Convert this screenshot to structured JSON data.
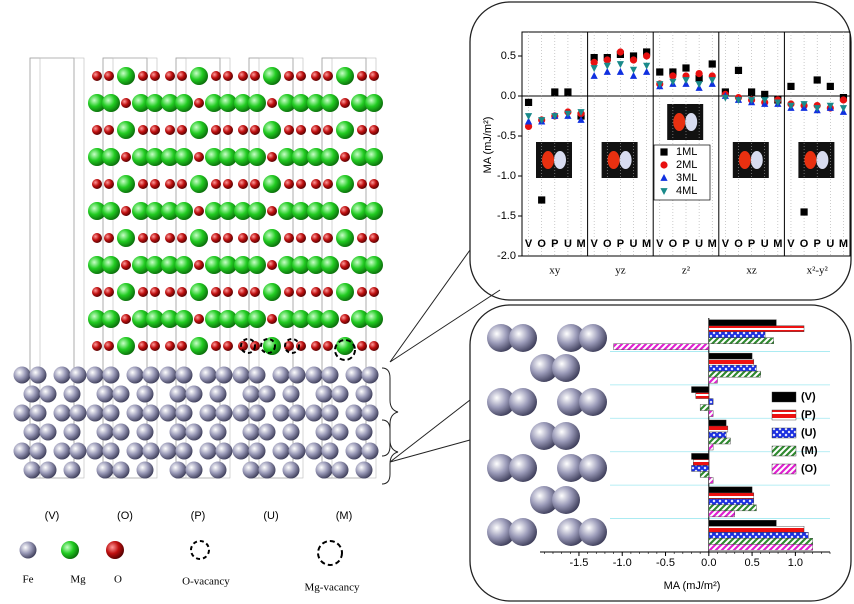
{
  "diagram": {
    "columns": [
      "(V)",
      "(O)",
      "(P)",
      "(U)",
      "(M)"
    ],
    "legend": [
      "Fe",
      "Mg",
      "O",
      "O-vacancy",
      "Mg-vacancy"
    ]
  },
  "chart_data": [
    {
      "type": "scatter",
      "ylabel": "MA (mJ/m²)",
      "groups": [
        "xy",
        "yz",
        "z²",
        "xz",
        "x²-y²"
      ],
      "categories": [
        "V",
        "O",
        "P",
        "U",
        "M"
      ],
      "series": [
        {
          "name": "1ML",
          "color": "#000000",
          "marker": "square",
          "values": [
            [
              -0.08,
              -1.3,
              0.05,
              0.05,
              -0.25
            ],
            [
              0.48,
              0.48,
              0.52,
              0.5,
              0.55
            ],
            [
              0.3,
              0.3,
              0.35,
              0.22,
              0.4
            ],
            [
              0.05,
              0.32,
              0.05,
              0.02,
              -0.05
            ],
            [
              0.12,
              -1.45,
              0.2,
              0.12,
              -0.02
            ]
          ]
        },
        {
          "name": "2ML",
          "color": "#e81010",
          "marker": "circle",
          "values": [
            [
              -0.38,
              -0.3,
              -0.25,
              -0.2,
              -0.22
            ],
            [
              0.42,
              0.45,
              0.55,
              0.45,
              0.5
            ],
            [
              0.15,
              0.25,
              0.25,
              0.28,
              0.25
            ],
            [
              0.02,
              -0.02,
              -0.05,
              -0.08,
              -0.05
            ],
            [
              -0.1,
              -0.12,
              -0.12,
              -0.15,
              -0.05
            ]
          ]
        },
        {
          "name": "3ML",
          "color": "#1030e0",
          "marker": "triangle",
          "values": [
            [
              -0.32,
              -0.32,
              -0.25,
              -0.25,
              -0.3
            ],
            [
              0.25,
              0.3,
              0.3,
              0.25,
              0.3
            ],
            [
              0.12,
              0.15,
              0.15,
              0.1,
              0.15
            ],
            [
              0.0,
              -0.05,
              -0.08,
              -0.1,
              -0.1
            ],
            [
              -0.15,
              -0.15,
              -0.18,
              -0.15,
              -0.2
            ]
          ]
        },
        {
          "name": "4ML",
          "color": "#1a8a8a",
          "marker": "triangle-down",
          "values": [
            [
              -0.25,
              -0.3,
              -0.25,
              -0.22,
              -0.2
            ],
            [
              0.35,
              0.38,
              0.4,
              0.33,
              0.38
            ],
            [
              0.15,
              0.18,
              0.2,
              0.15,
              0.2
            ],
            [
              -0.02,
              -0.05,
              -0.05,
              -0.05,
              -0.08
            ],
            [
              -0.12,
              -0.1,
              -0.15,
              -0.12,
              -0.15
            ]
          ]
        }
      ],
      "ylim": [
        -2,
        0.8
      ],
      "yticks": [
        {
          "value": -2,
          "label": "-2.0"
        },
        -1.5,
        {
          "value": -1,
          "label": "-1.0"
        },
        -0.5,
        {
          "value": 0,
          "label": "0.0"
        },
        0.5
      ]
    },
    {
      "type": "bar",
      "orientation": "horizontal",
      "xlabel": "MA (mJ/m²)",
      "categories": [
        null,
        null,
        null,
        null,
        null,
        null,
        null
      ],
      "series": [
        {
          "name": "(V)",
          "color": "#000000",
          "pattern": "solid",
          "values": [
            0.78,
            0.5,
            -0.2,
            0.2,
            -0.2,
            0.5,
            0.78
          ]
        },
        {
          "name": "(P)",
          "color": "#ee1111",
          "pattern": "hlines",
          "values": [
            1.1,
            0.52,
            -0.15,
            0.22,
            -0.18,
            0.52,
            1.1
          ]
        },
        {
          "name": "(U)",
          "color": "#1a2ee0",
          "pattern": "crosshatch",
          "values": [
            0.65,
            0.55,
            0.05,
            0.2,
            -0.2,
            0.52,
            1.15
          ]
        },
        {
          "name": "(M)",
          "color": "#2f8a2f",
          "pattern": "diagonal",
          "values": [
            0.75,
            0.6,
            -0.1,
            0.25,
            -0.1,
            0.55,
            1.2
          ]
        },
        {
          "name": "(O)",
          "color": "#e020d0",
          "pattern": "diagonal",
          "values": [
            -1.1,
            0.1,
            0.05,
            0.05,
            0.05,
            0.3,
            1.2
          ]
        }
      ],
      "xlim": [
        -1.95,
        1.4
      ],
      "xticks": [
        -1.5,
        {
          "value": -1,
          "label": "-1.0"
        },
        -0.5,
        {
          "value": 0,
          "label": "0.0"
        },
        0.5,
        {
          "value": 1,
          "label": "1.0"
        }
      ]
    }
  ]
}
